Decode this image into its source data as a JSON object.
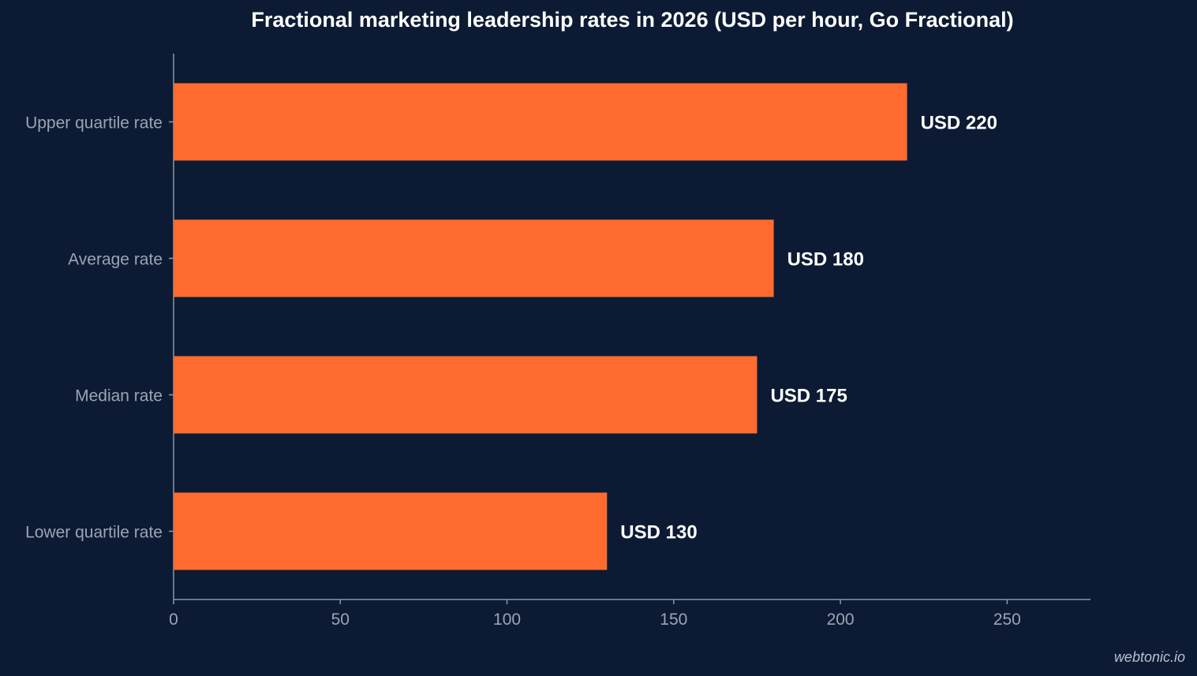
{
  "chart_data": {
    "type": "bar",
    "orientation": "horizontal",
    "title": "Fractional marketing leadership rates in 2026 (USD per hour, Go Fractional)",
    "categories": [
      "Upper quartile rate",
      "Average rate",
      "Median rate",
      "Lower quartile rate"
    ],
    "values": [
      220,
      180,
      175,
      130
    ],
    "data_labels": [
      "USD 220",
      "USD 180",
      "USD 175",
      "USD 130"
    ],
    "xlim": [
      0,
      275
    ],
    "xticks": [
      0,
      50,
      100,
      150,
      200,
      250
    ],
    "xlabel": "",
    "ylabel": "",
    "grid": false,
    "legend": "none"
  },
  "colors": {
    "background": "#0c1b33",
    "bar": "#ff6b2f",
    "axis": "#8a96a8",
    "tick_text": "#9aa4b4",
    "label_text": "#ffffff"
  },
  "watermark": "webtonic.io"
}
